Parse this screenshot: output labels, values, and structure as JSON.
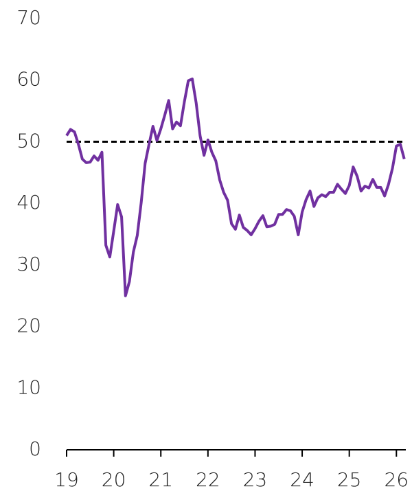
{
  "chart_data": {
    "type": "line",
    "x": [
      19,
      19.083,
      19.167,
      19.25,
      19.333,
      19.417,
      19.5,
      19.583,
      19.667,
      19.75,
      19.833,
      19.917,
      20,
      20.083,
      20.167,
      20.25,
      20.333,
      20.417,
      20.5,
      20.583,
      20.667,
      20.75,
      20.833,
      20.917,
      21,
      21.083,
      21.167,
      21.25,
      21.333,
      21.417,
      21.5,
      21.583,
      21.667,
      21.75,
      21.833,
      21.917,
      22,
      22.083,
      22.167,
      22.25,
      22.333,
      22.417,
      22.5,
      22.583,
      22.667,
      22.75,
      22.833,
      22.917,
      23,
      23.083,
      23.167,
      23.25,
      23.333,
      23.417,
      23.5,
      23.583,
      23.667,
      23.75,
      23.833,
      23.917,
      24,
      24.083,
      24.167,
      24.25,
      24.333,
      24.417,
      24.5,
      24.583,
      24.667,
      24.75,
      24.833,
      24.917,
      25,
      25.083,
      25.167,
      25.25,
      25.333,
      25.417,
      25.5,
      25.583,
      25.667,
      25.75,
      25.833,
      25.917,
      26,
      26.083,
      26.167
    ],
    "series": [
      {
        "color": "#7030a0",
        "values": [
          51,
          52,
          51.6,
          49.6,
          47.2,
          46.6,
          46.7,
          47.7,
          47,
          48.3,
          33.2,
          31.3,
          35.5,
          39.8,
          37.8,
          25,
          27.3,
          32.1,
          34.8,
          40.1,
          46.5,
          49.6,
          52.5,
          50.2,
          52.1,
          54.3,
          56.7,
          52.1,
          53.2,
          52.6,
          56.5,
          59.9,
          60.2,
          56.3,
          51,
          47.8,
          50.3,
          48.3,
          46.9,
          43.8,
          41.8,
          40.5,
          36.7,
          35.8,
          38.1,
          36.1,
          35.6,
          34.9,
          35.9,
          37.1,
          38,
          36.2,
          36.3,
          36.6,
          38.2,
          38.2,
          39,
          38.8,
          37.9,
          34.9,
          38.6,
          40.6,
          42,
          39.5,
          40.9,
          41.4,
          41.1,
          41.8,
          41.8,
          43.1,
          42.3,
          41.6,
          42.9,
          45.9,
          44.4,
          42,
          42.8,
          42.5,
          43.9,
          42.6,
          42.6,
          41.2,
          43.1,
          45.7,
          49.3,
          49.6,
          47.2
        ]
      }
    ],
    "hline": 50,
    "hline_color": "#000000",
    "xlim": [
      19,
      26.2
    ],
    "xticks": [
      19,
      20,
      21,
      22,
      23,
      24,
      25,
      26
    ],
    "ylim": [
      0,
      70
    ],
    "yticks": [
      0,
      10,
      20,
      30,
      40,
      50,
      60,
      70
    ]
  }
}
